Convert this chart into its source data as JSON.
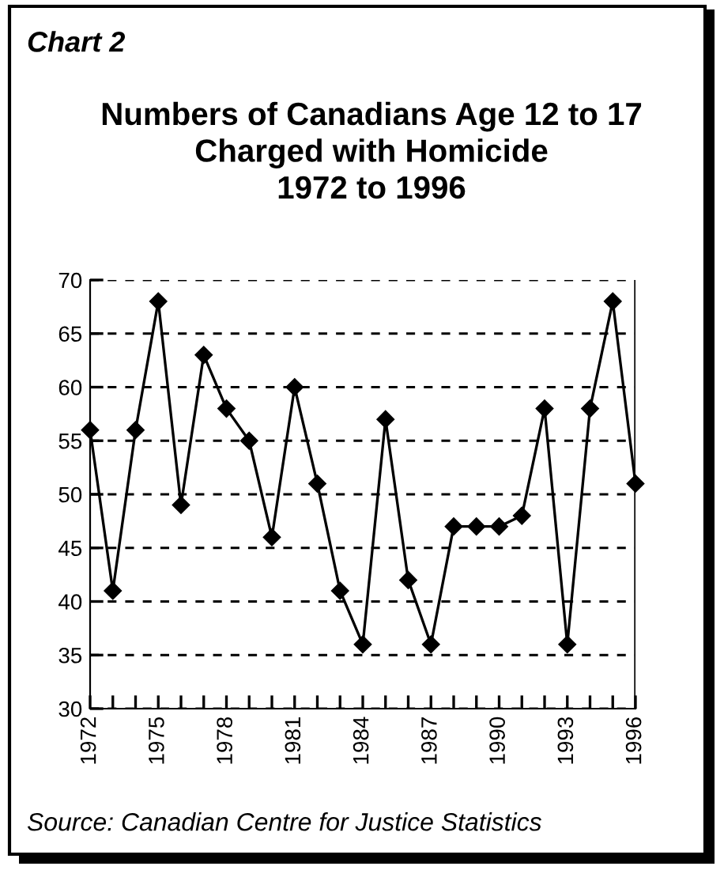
{
  "chart_data": {
    "type": "line",
    "subtitle": "Chart 2",
    "title": "Numbers of Canadians Age 12 to 17\nCharged with Homicide\n1972 to 1996",
    "x": [
      1972,
      1973,
      1974,
      1975,
      1976,
      1977,
      1978,
      1979,
      1980,
      1981,
      1982,
      1983,
      1984,
      1985,
      1986,
      1987,
      1988,
      1989,
      1990,
      1991,
      1992,
      1993,
      1994,
      1995,
      1996
    ],
    "values": [
      56,
      41,
      56,
      68,
      49,
      63,
      58,
      55,
      46,
      60,
      51,
      41,
      36,
      57,
      42,
      36,
      47,
      47,
      47,
      48,
      58,
      36,
      58,
      68,
      51
    ],
    "color": "#000000",
    "marker": "diamond",
    "line_style": "solid",
    "xlim": [
      1972,
      1996
    ],
    "xticks": [
      1972,
      {
        "value": 1973,
        "label": null
      },
      {
        "value": 1974,
        "label": null
      },
      1975,
      {
        "value": 1976,
        "label": null
      },
      {
        "value": 1977,
        "label": null
      },
      1978,
      {
        "value": 1979,
        "label": null
      },
      {
        "value": 1980,
        "label": null
      },
      1981,
      {
        "value": 1982,
        "label": null
      },
      {
        "value": 1983,
        "label": null
      },
      1984,
      {
        "value": 1985,
        "label": null
      },
      {
        "value": 1986,
        "label": null
      },
      1987,
      {
        "value": 1988,
        "label": null
      },
      {
        "value": 1989,
        "label": null
      },
      1990,
      {
        "value": 1991,
        "label": null
      },
      {
        "value": 1992,
        "label": null
      },
      1993,
      {
        "value": 1994,
        "label": null
      },
      {
        "value": 1995,
        "label": null
      },
      1996
    ],
    "ylim": [
      30,
      70
    ],
    "yticks": [
      30,
      35,
      40,
      45,
      50,
      55,
      60,
      65,
      70
    ],
    "grid": "y",
    "legend": false,
    "annotations": [
      "Source: Canadian Centre for Justice Statistics"
    ]
  }
}
